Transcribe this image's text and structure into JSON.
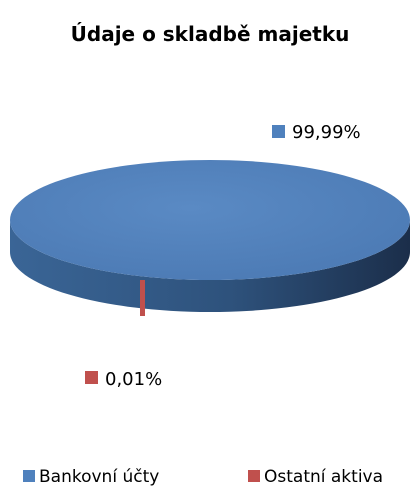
{
  "chart_data": {
    "type": "pie",
    "title": "Údaje o skladbě majetku",
    "slices": [
      {
        "name": "Bankovní účty",
        "value": 99.99,
        "label": "99,99%",
        "color": "#4f81bd"
      },
      {
        "name": "Ostatní aktiva",
        "value": 0.01,
        "label": "0,01%",
        "color": "#c0504d"
      }
    ],
    "legend_position": "bottom",
    "three_d": true
  }
}
